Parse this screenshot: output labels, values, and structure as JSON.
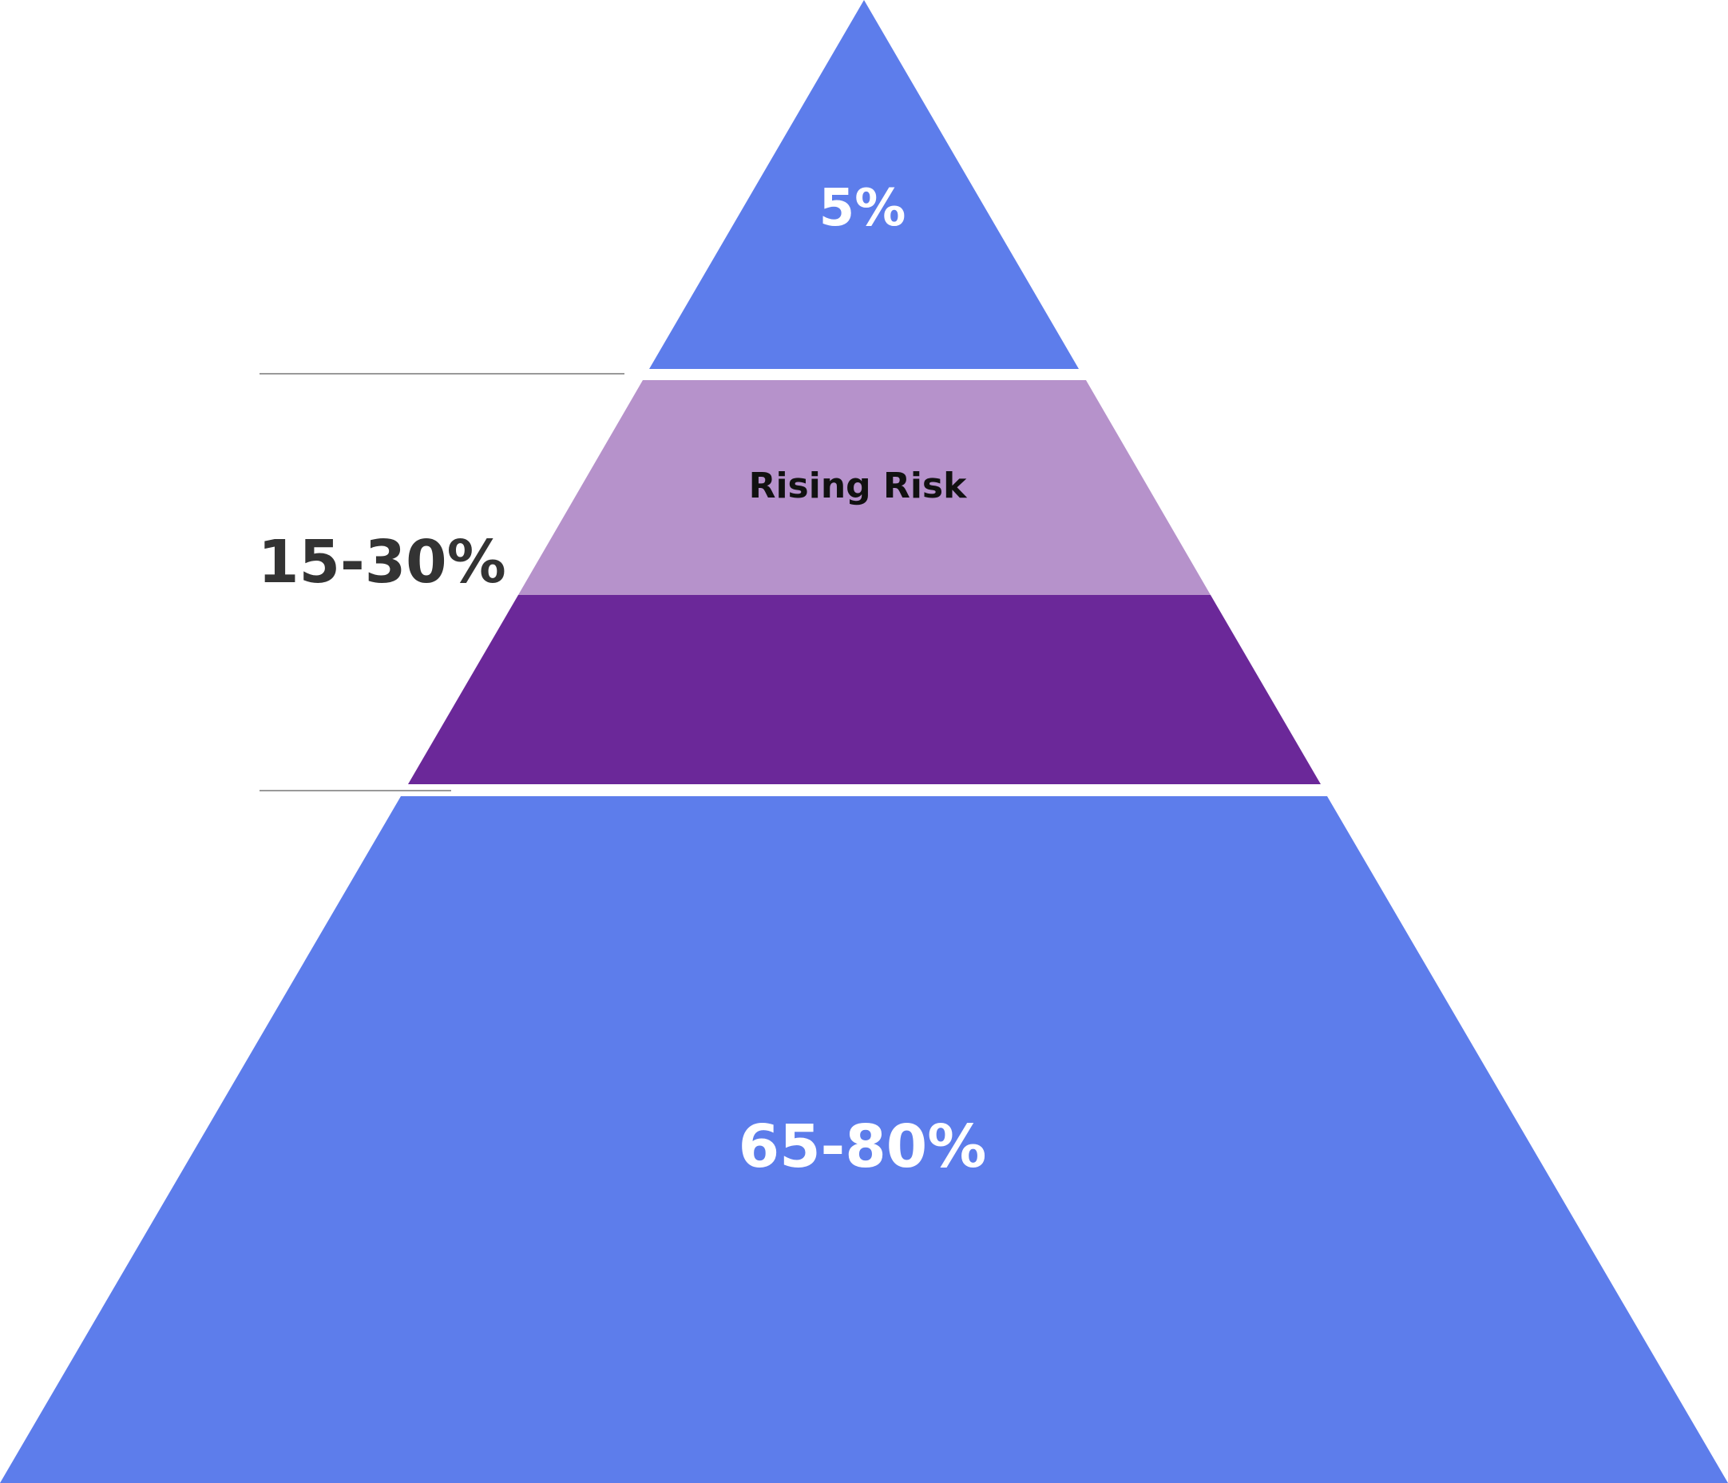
{
  "pyramid": {
    "tiers": [
      {
        "id": "top",
        "label": "5%",
        "color": "#5d7deb",
        "label_color": "#ffffff"
      },
      {
        "id": "rising-risk-upper",
        "label": "Rising Risk",
        "color": "#b692cb",
        "label_color": "#111111"
      },
      {
        "id": "rising-risk-lower",
        "label": "",
        "color": "#6b2899",
        "label_color": "#ffffff"
      },
      {
        "id": "base",
        "label": "65-80%",
        "color": "#5d7deb",
        "label_color": "#ffffff"
      }
    ],
    "side_label": {
      "text": "15-30%",
      "color": "#333333"
    },
    "bracket_line_color": "#999999",
    "background": "#ffffff"
  }
}
